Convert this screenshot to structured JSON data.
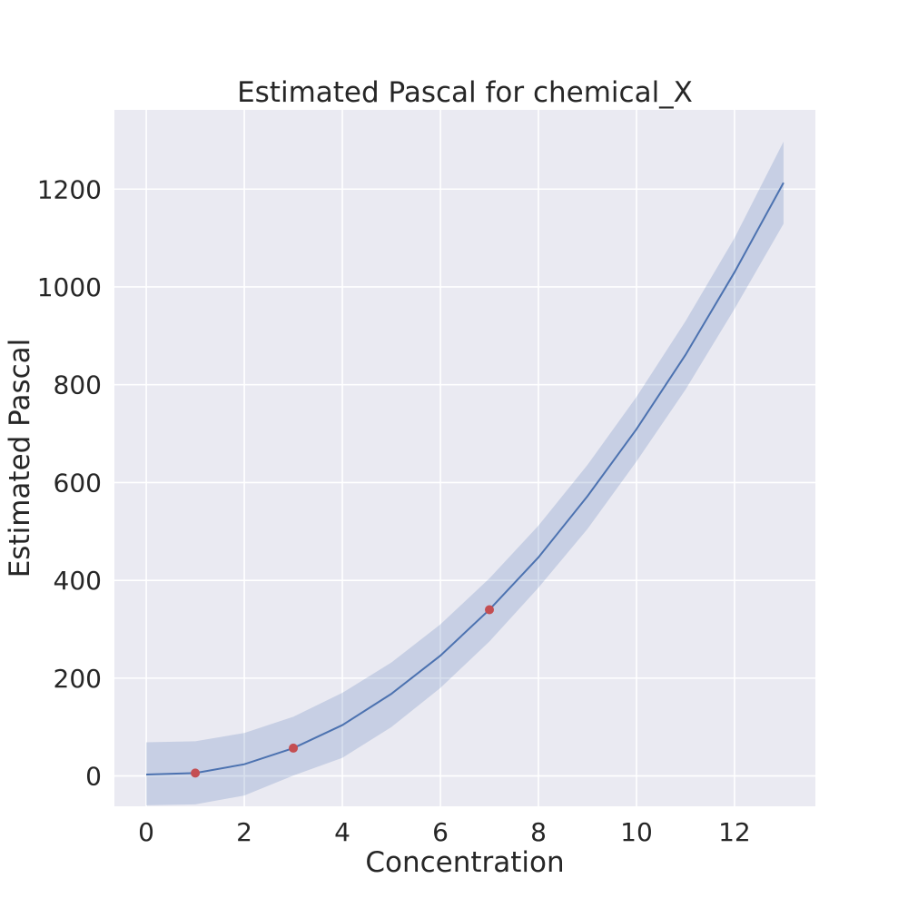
{
  "chart_data": {
    "type": "line",
    "title": "Estimated Pascal for chemical_X",
    "xlabel": "Concentration",
    "ylabel": "Estimated Pascal",
    "xlim": [
      -0.65,
      13.65
    ],
    "ylim": [
      -62,
      1362
    ],
    "xticks": [
      0,
      2,
      4,
      6,
      8,
      10,
      12
    ],
    "yticks": [
      0,
      200,
      400,
      600,
      800,
      1000,
      1200
    ],
    "grid": true,
    "colors": {
      "background": "#EAEAF2",
      "grid": "#FFFFFF",
      "line": "#4C72B0",
      "band": "#4C72B0",
      "points": "#C44E52",
      "text": "#262626"
    },
    "series": [
      {
        "kind": "line",
        "x": [
          0,
          1,
          2,
          3,
          4,
          5,
          6,
          7,
          8,
          9,
          10,
          11,
          12,
          13
        ],
        "y": [
          3,
          6,
          24,
          57,
          104,
          168,
          246,
          340,
          447,
          572,
          709,
          861,
          1030,
          1213
        ]
      },
      {
        "kind": "band",
        "x": [
          0,
          1,
          2,
          3,
          4,
          5,
          6,
          7,
          8,
          9,
          10,
          11,
          12,
          13
        ],
        "lower": [
          -60,
          -58,
          -40,
          1,
          37,
          100,
          180,
          275,
          385,
          505,
          643,
          790,
          955,
          1129
        ],
        "upper": [
          69,
          71,
          88,
          121,
          170,
          232,
          310,
          404,
          512,
          636,
          775,
          930,
          1100,
          1297
        ]
      },
      {
        "kind": "scatter",
        "x": [
          1,
          3,
          7
        ],
        "y": [
          6,
          57,
          340
        ]
      }
    ]
  }
}
